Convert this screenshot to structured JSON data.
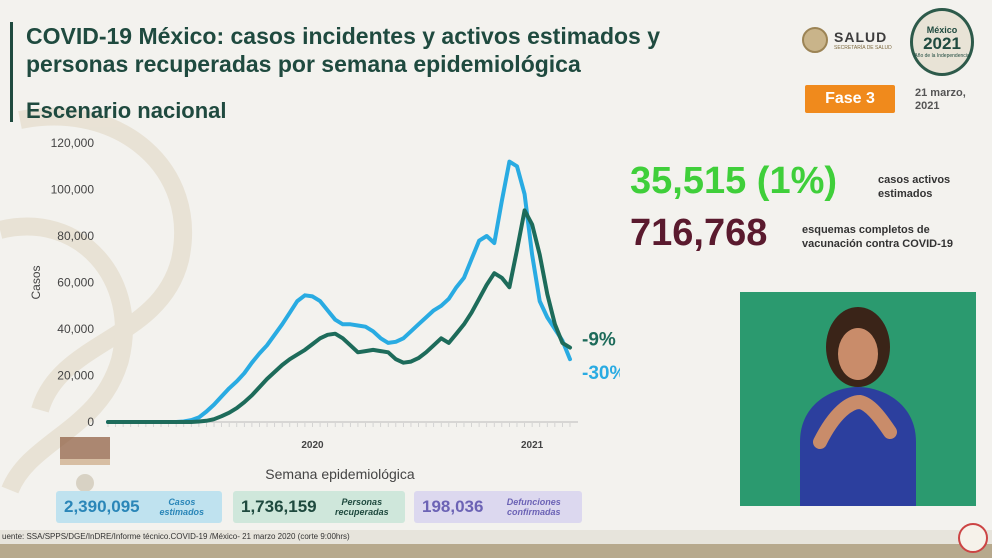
{
  "header": {
    "title": "COVID-19 México: casos incidentes y activos estimados y personas recuperadas por semana epidemiológica",
    "subtitle": "Escenario nacional",
    "salud_label": "SALUD",
    "salud_sub": "SECRETARÍA DE SALUD",
    "year_logo": {
      "top": "México",
      "year": "2021",
      "bottom": "Año de la Independencia"
    },
    "phase": "Fase 3",
    "date": "21 marzo, 2021"
  },
  "kpis": {
    "active_value": "35,515 (1%)",
    "active_label": "casos activos estimados",
    "vaccination_value": "716,768",
    "vaccination_label": "esquemas completos de vacunación contra COVID-19"
  },
  "summary": {
    "estimated_value": "2,390,095",
    "estimated_label": "Casos estimados",
    "recovered_value": "1,736,159",
    "recovered_label": "Personas recuperadas",
    "deaths_value": "198,036",
    "deaths_label": "Defunciones confirmadas"
  },
  "footer": {
    "source": "uente: SSA/SPPS/DGE/InDRE/Informe técnico.COVID-19 /México- 21 marzo 2020 (corte 9:00hrs)"
  },
  "colors": {
    "incident": "#29abe2",
    "active": "#1d6b5a",
    "kpi_green": "#3fcf3a",
    "kpi_wine": "#5a1a2e",
    "phase": "#f08a1c"
  },
  "chart_data": {
    "type": "line",
    "ylabel": "Casos",
    "xlabel": "Semana epidemiológica",
    "ylim": [
      0,
      120000
    ],
    "yticks": [
      "120,000",
      "100,000",
      "80,000",
      "60,000",
      "40,000",
      "20,000",
      "0"
    ],
    "year_labels": [
      "2020",
      "2021"
    ],
    "x": [
      1,
      2,
      3,
      4,
      5,
      6,
      7,
      8,
      9,
      10,
      11,
      12,
      13,
      14,
      15,
      16,
      17,
      18,
      19,
      20,
      21,
      22,
      23,
      24,
      25,
      26,
      27,
      28,
      29,
      30,
      31,
      32,
      33,
      34,
      35,
      36,
      37,
      38,
      39,
      40,
      41,
      42,
      43,
      44,
      45,
      46,
      47,
      48,
      49,
      50,
      51,
      52,
      53,
      54,
      55,
      56,
      57,
      58,
      59,
      60,
      61,
      62
    ],
    "series": [
      {
        "name": "",
        "color_key": "incident",
        "values": [
          0,
          0,
          0,
          0,
          0,
          0,
          0,
          0,
          0,
          0,
          200,
          800,
          2000,
          4500,
          7500,
          11000,
          14500,
          17500,
          21000,
          25500,
          29500,
          33000,
          37500,
          42000,
          47000,
          52000,
          54500,
          54000,
          52000,
          48000,
          44000,
          42000,
          42000,
          41500,
          41000,
          39000,
          36000,
          34000,
          34500,
          36000,
          39000,
          42000,
          45000,
          48000,
          50000,
          53000,
          58000,
          62000,
          70000,
          78000,
          80000,
          77000,
          95000,
          112000,
          110000,
          98000,
          72000,
          52000,
          45000,
          40000,
          35000,
          27000
        ],
        "end_label": "-30%"
      },
      {
        "name": "",
        "color_key": "active",
        "values": [
          0,
          0,
          0,
          0,
          0,
          0,
          0,
          0,
          0,
          0,
          0,
          0,
          200,
          500,
          1200,
          2500,
          4000,
          6000,
          8500,
          11500,
          15000,
          18500,
          21500,
          24500,
          27000,
          29000,
          31000,
          33500,
          36000,
          37500,
          38000,
          36000,
          33000,
          30000,
          30500,
          31000,
          30500,
          30000,
          27000,
          25500,
          26000,
          27500,
          30000,
          33000,
          36000,
          34000,
          38000,
          42000,
          47000,
          53000,
          59000,
          64000,
          62000,
          58000,
          74000,
          91000,
          85000,
          72000,
          55000,
          42000,
          34000,
          32000
        ],
        "end_label": "-9%"
      }
    ]
  }
}
